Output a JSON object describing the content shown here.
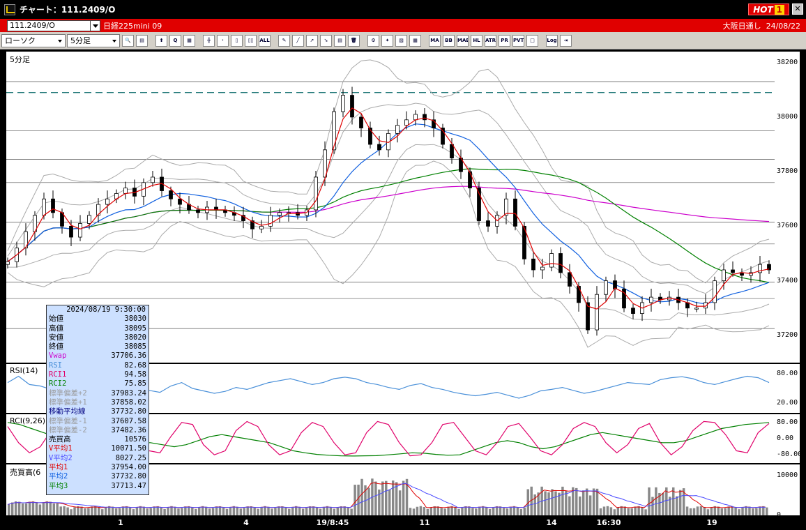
{
  "window": {
    "title": "チャート：111.2409/O",
    "hot_label": "HOT",
    "hot_num": "1",
    "close_symbol": "✕"
  },
  "symbol_bar": {
    "code": "111.2409/O",
    "name": "日経225mini 09",
    "session": "大阪日通し",
    "date": "24/08/22"
  },
  "toolbar": {
    "chart_type": "ローソク",
    "interval": "5分足",
    "buttons": [
      {
        "icon": "zoom-icon",
        "text": "🔍"
      },
      {
        "icon": "layout-icon",
        "text": "▤"
      },
      {
        "icon": "candle-up-icon",
        "text": "⬆"
      },
      {
        "icon": "q-icon",
        "text": "Q"
      },
      {
        "icon": "table-icon",
        "text": "▦"
      },
      {
        "icon": "split-icon",
        "text": "╬"
      },
      {
        "icon": "disabled-icon",
        "text": "·"
      },
      {
        "icon": "candle-icon",
        "text": "▯"
      },
      {
        "icon": "candle-gap-icon",
        "text": "▯▯"
      },
      {
        "icon": "all-icon",
        "text": "ALL"
      },
      {
        "icon": "pen-icon",
        "text": "✎"
      },
      {
        "icon": "line-icon",
        "text": "╱"
      },
      {
        "icon": "cursor-icon",
        "text": "➚"
      },
      {
        "icon": "arrow-icon",
        "text": "➘"
      },
      {
        "icon": "memo-icon",
        "text": "▤"
      },
      {
        "icon": "trash-icon",
        "text": "🗑"
      },
      {
        "icon": "gear-icon",
        "text": "⚙"
      },
      {
        "icon": "wrench-icon",
        "text": "✦"
      },
      {
        "icon": "palette-icon",
        "text": "▧"
      },
      {
        "icon": "grid-icon",
        "text": "▦"
      },
      {
        "icon": "ma-icon",
        "text": "MA"
      },
      {
        "icon": "bb-icon",
        "text": "BB"
      },
      {
        "icon": "mae-icon",
        "text": "MAE"
      },
      {
        "icon": "hl-icon",
        "text": "HL"
      },
      {
        "icon": "atr-icon",
        "text": "ATR"
      },
      {
        "icon": "pr-icon",
        "text": "PR"
      },
      {
        "icon": "pvt-icon",
        "text": "PVT"
      },
      {
        "icon": "square-icon",
        "text": "□"
      },
      {
        "icon": "log-icon",
        "text": "Log"
      },
      {
        "icon": "export-icon",
        "text": "⇥"
      }
    ]
  },
  "chart_data": {
    "type": "line",
    "main": {
      "label": "5分足",
      "y_ticks": [
        "38200",
        "38000",
        "37800",
        "37600",
        "37400",
        "37200"
      ],
      "ylim": [
        37100,
        38240
      ],
      "reference_line": 38090,
      "close_series": [
        37470,
        37520,
        37580,
        37640,
        37700,
        37650,
        37600,
        37560,
        37610,
        37640,
        37680,
        37700,
        37720,
        37740,
        37710,
        37760,
        37780,
        37730,
        37700,
        37680,
        37660,
        37650,
        37670,
        37660,
        37650,
        37640,
        37620,
        37590,
        37600,
        37640,
        37650,
        37650,
        37640,
        37660,
        37780,
        37880,
        38020,
        38080,
        38000,
        37960,
        37900,
        37880,
        37940,
        37970,
        37990,
        38010,
        37990,
        37960,
        37900,
        37850,
        37800,
        37740,
        37620,
        37600,
        37640,
        37700,
        37600,
        37480,
        37440,
        37450,
        37500,
        37430,
        37380,
        37320,
        37220,
        37350,
        37400,
        37370,
        37300,
        37280,
        37320,
        37340,
        37330,
        37340,
        37320,
        37300,
        37300,
        37320,
        37400,
        37440,
        37430,
        37420,
        37430,
        37460,
        37440
      ]
    },
    "rsi": {
      "label": "RSI(14)",
      "y_ticks": [
        "80.00",
        "20.00"
      ],
      "ylim": [
        0,
        100
      ],
      "values": [
        62,
        75,
        58,
        55,
        48,
        60,
        50,
        46,
        58,
        52,
        42,
        48,
        54,
        46,
        42,
        55,
        62,
        50,
        45,
        40,
        44,
        52,
        48,
        55,
        62,
        66,
        70,
        64,
        58,
        62,
        70,
        73,
        70,
        62,
        58,
        52,
        48,
        56,
        60,
        52,
        48,
        42,
        38,
        35,
        38,
        42,
        36,
        30,
        36,
        45,
        48,
        52,
        46,
        40,
        44,
        50,
        56,
        62,
        60,
        58,
        68,
        72,
        74,
        70,
        62,
        58,
        64,
        70,
        75,
        72,
        62
      ]
    },
    "rci": {
      "label": "RCI(9,26)",
      "y_ticks": [
        "80.00",
        "0.00",
        "-80.00"
      ],
      "ylim": [
        -100,
        100
      ],
      "rci1": [
        60,
        -20,
        -70,
        -40,
        40,
        80,
        20,
        -60,
        -80,
        -30,
        60,
        70,
        10,
        -60,
        -70,
        10,
        80,
        70,
        -30,
        -80,
        -60,
        40,
        85,
        60,
        -30,
        -80,
        -60,
        30,
        80,
        60,
        -20,
        -80,
        -70,
        30,
        85,
        70,
        -20,
        -85,
        -80,
        -20,
        70,
        80,
        10,
        -60,
        -80,
        -20,
        60,
        75,
        10,
        -60,
        -80,
        -30,
        50,
        80,
        60,
        -20,
        -70,
        -30,
        50,
        75,
        -20,
        -80,
        -40,
        40,
        85,
        80,
        20,
        -60,
        -70,
        30,
        75
      ],
      "rci2": [
        80,
        70,
        50,
        30,
        10,
        -10,
        -20,
        -30,
        -40,
        -40,
        -30,
        -20,
        -20,
        -30,
        -40,
        -30,
        -10,
        10,
        20,
        10,
        0,
        -10,
        -20,
        -40,
        -60,
        -70,
        -78,
        -82,
        -85,
        -86,
        -85,
        -84,
        -80,
        -75,
        -70,
        -72,
        -78,
        -82,
        -80,
        -60,
        -40,
        -20,
        -10,
        -20,
        -40,
        -50,
        -40,
        -20,
        0,
        20,
        30,
        20,
        10,
        0,
        -10,
        -20,
        -20,
        -10,
        10,
        30,
        50,
        60,
        70,
        75,
        80
      ]
    },
    "volume": {
      "label": "売買高(6",
      "y_ticks": [
        "10000",
        "0"
      ],
      "ylim": [
        0,
        12000
      ]
    },
    "x_ticks": [
      "1",
      "4",
      "19/8:45",
      "11",
      "14",
      "16:30",
      "19"
    ]
  },
  "info": {
    "datetime": "2024/08/19 9:30:00",
    "rows": [
      {
        "label": "始値",
        "value": "38030",
        "color": "#000000"
      },
      {
        "label": "高値",
        "value": "38095",
        "color": "#000000"
      },
      {
        "label": "安値",
        "value": "38020",
        "color": "#000000"
      },
      {
        "label": "終値",
        "value": "38085",
        "color": "#000000"
      },
      {
        "label": "Vwap",
        "value": "37706.36",
        "color": "#cc00cc"
      },
      {
        "label": "RSI",
        "value": "82.68",
        "color": "#4a90d9"
      },
      {
        "label": "RCI1",
        "value": "94.58",
        "color": "#e0006a"
      },
      {
        "label": "RCI2",
        "value": "75.85",
        "color": "#008000"
      },
      {
        "label": "標準偏差+2",
        "value": "37983.24",
        "color": "#999999"
      },
      {
        "label": "標準偏差+1",
        "value": "37858.02",
        "color": "#999999"
      },
      {
        "label": "移動平均線",
        "value": "37732.80",
        "color": "#000080"
      },
      {
        "label": "標準偏差-1",
        "value": "37607.58",
        "color": "#999999"
      },
      {
        "label": "標準偏差-2",
        "value": "37482.36",
        "color": "#999999"
      },
      {
        "label": "売買高",
        "value": "10576",
        "color": "#000000"
      },
      {
        "label": "V平均1",
        "value": "10071.50",
        "color": "#e00000"
      },
      {
        "label": "V平均2",
        "value": "8027.25",
        "color": "#4a4aff"
      },
      {
        "label": "平均1",
        "value": "37954.00",
        "color": "#e00000"
      },
      {
        "label": "平均2",
        "value": "37732.80",
        "color": "#1060e0"
      },
      {
        "label": "平均3",
        "value": "37713.47",
        "color": "#008000"
      }
    ]
  },
  "colors": {
    "title_bar": "#000000",
    "symbol_bar": "#e00000",
    "toolbar": "#d4d0c8",
    "ma_short": "#e00000",
    "ma_mid": "#1060e0",
    "ma_long": "#008000",
    "vwap": "#cc00cc",
    "bands": "#aaaaaa",
    "rsi": "#4a90d9",
    "rci1": "#e0006a",
    "rci2": "#008000"
  }
}
